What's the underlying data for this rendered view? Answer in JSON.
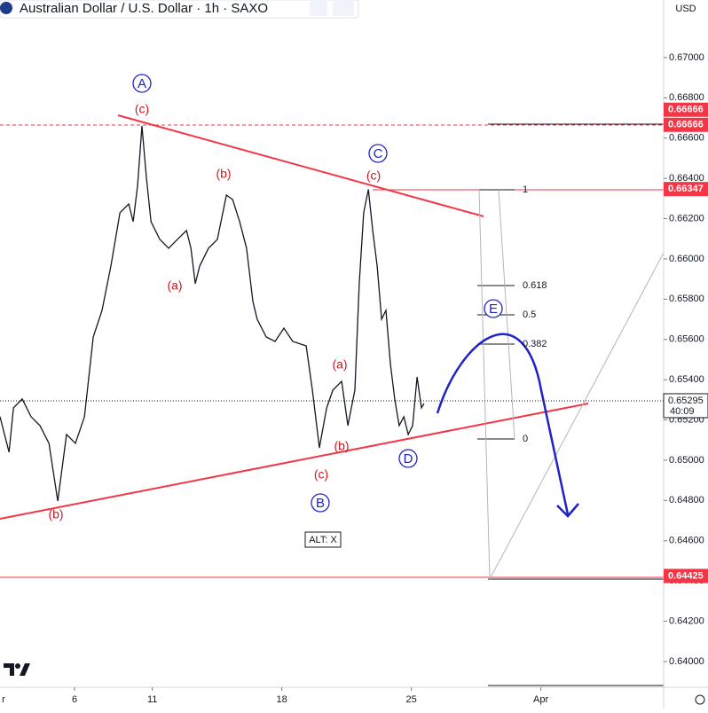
{
  "chart_data": {
    "type": "line",
    "title": "Australian Dollar / U.S. Dollar · 1h · SAXO",
    "currency": "USD",
    "series": [
      {
        "color": "#131722",
        "x": [
          0.12,
          0.47,
          0.64,
          0.98,
          1.32,
          1.66,
          2.01,
          2.35,
          2.69,
          3.03,
          3.38,
          3.72,
          4.06,
          4.4,
          4.75,
          5.09,
          5.26,
          5.43,
          5.6,
          5.77,
          5.95,
          6.29,
          6.63,
          6.97,
          7.32,
          7.49,
          7.66,
          7.83,
          8.17,
          8.51,
          8.86,
          9.1,
          9.37,
          9.64,
          9.88,
          10.05,
          10.4,
          10.74,
          11.08,
          11.42,
          11.94,
          12.18,
          12.45,
          12.73,
          12.97,
          13.31,
          13.55,
          13.82,
          13.99,
          14.16,
          14.34,
          14.51,
          14.68,
          14.85,
          15.02,
          15.19,
          15.36,
          15.53,
          15.71,
          15.88,
          16.05,
          16.22,
          16.39,
          16.49
        ],
        "values": [
          0.65216,
          0.6504,
          0.6526,
          0.65304,
          0.65216,
          0.65172,
          0.65084,
          0.64797,
          0.65128,
          0.65084,
          0.65216,
          0.65612,
          0.65744,
          0.65965,
          0.66229,
          0.66273,
          0.66185,
          0.66361,
          0.6666,
          0.66405,
          0.66185,
          0.66097,
          0.66053,
          0.66097,
          0.66141,
          0.66053,
          0.65877,
          0.65965,
          0.66053,
          0.66097,
          0.66317,
          0.66295,
          0.66185,
          0.66053,
          0.65789,
          0.657,
          0.65612,
          0.6559,
          0.65656,
          0.6559,
          0.65568,
          0.65348,
          0.65062,
          0.6526,
          0.65348,
          0.65392,
          0.65172,
          0.65348,
          0.65877,
          0.66229,
          0.66345,
          0.66141,
          0.65965,
          0.657,
          0.65744,
          0.6548,
          0.65304,
          0.65172,
          0.65216,
          0.65128,
          0.65172,
          0.65414,
          0.6526,
          0.65282
        ]
      }
    ],
    "xlim": [
      0.12,
      25.74
    ],
    "ylim": [
      0.63872,
      0.67286
    ],
    "xticks": [
      {
        "value": 0,
        "label": "r"
      },
      {
        "value": 3,
        "label": "6"
      },
      {
        "value": 6,
        "label": "11"
      },
      {
        "value": 11,
        "label": "18"
      },
      {
        "value": 16,
        "label": "25"
      },
      {
        "value": 21,
        "label": "Apr"
      }
    ],
    "yticks": [
      {
        "value": 0.64,
        "label": "0.64000"
      },
      {
        "value": 0.642,
        "label": "0.64200"
      },
      {
        "value": 0.644,
        "label": "0.64400"
      },
      {
        "value": 0.646,
        "label": "0.64600"
      },
      {
        "value": 0.648,
        "label": "0.64800"
      },
      {
        "value": 0.65,
        "label": "0.65000"
      },
      {
        "value": 0.652,
        "label": "0.65200"
      },
      {
        "value": 0.654,
        "label": "0.65400"
      },
      {
        "value": 0.656,
        "label": "0.65600"
      },
      {
        "value": 0.658,
        "label": "0.65800"
      },
      {
        "value": 0.66,
        "label": "0.66000"
      },
      {
        "value": 0.662,
        "label": "0.66200"
      },
      {
        "value": 0.664,
        "label": "0.66400"
      },
      {
        "value": 0.666,
        "label": "0.66600"
      },
      {
        "value": 0.668,
        "label": "0.66800"
      },
      {
        "value": 0.67,
        "label": "0.67000"
      }
    ],
    "price_levels": [
      {
        "value": 0.66666,
        "label": "0.66666"
      },
      {
        "value": 0.66666,
        "label": "0.66666"
      },
      {
        "value": 0.66347,
        "label": "0.66347"
      },
      {
        "value": 0.64425,
        "label": "0.64425"
      }
    ],
    "last_price": {
      "value": 0.65295,
      "label": "0.65295"
    },
    "countdown": "40:09",
    "wave_labels": [
      "A",
      "(c)",
      "(b)",
      "(a)",
      "C",
      "(c)",
      "(a)",
      "(b)",
      "(c)",
      "B",
      "D",
      "E",
      "(b)"
    ],
    "fib_levels": [
      "1",
      "0.618",
      "0.5",
      "0.382",
      "0"
    ],
    "alt_label": "ALT: X"
  }
}
